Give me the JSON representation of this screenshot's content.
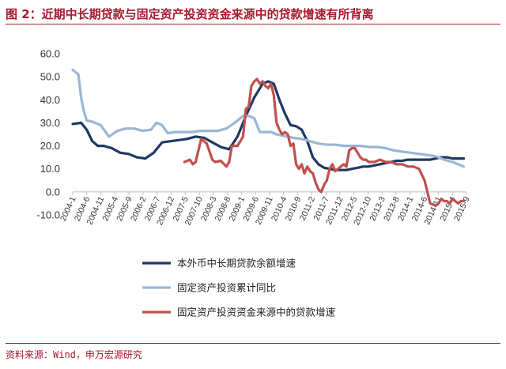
{
  "header": {
    "title": "图 2：近期中长期贷款与固定资产投资资金来源中的贷款增速有所背离"
  },
  "footer": {
    "source": "资料来源：Wind，申万宏源研究"
  },
  "chart_data": {
    "type": "line",
    "title": "",
    "xlabel": "",
    "ylabel": "",
    "ylim": [
      -10,
      60
    ],
    "yticks": [
      "60.0",
      "50.0",
      "40.0",
      "30.0",
      "20.0",
      "10.0",
      "0.0",
      "-10.0"
    ],
    "xticks": [
      "2004-1",
      "2004-6",
      "2004-11",
      "2005-4",
      "2005-9",
      "2006-2",
      "2006-7",
      "2006-12",
      "2007-5",
      "2007-10",
      "2008-3",
      "2008-8",
      "2009-1",
      "2009-6",
      "2009-11",
      "2010-4",
      "2010-9",
      "2011-2",
      "2011-7",
      "2011-12",
      "2012-5",
      "2012-10",
      "2013-3",
      "2013-8",
      "2014-1",
      "2014-6",
      "2014-11",
      "2015-4",
      "2015-9"
    ],
    "x_range": [
      0,
      141
    ],
    "legend_position": "bottom",
    "grid": false,
    "series": [
      {
        "name": "本外币中长期贷款余额增速",
        "color": "#1f3864",
        "x": [
          0,
          3,
          5,
          7,
          9,
          11,
          14,
          17,
          20,
          23,
          26,
          29,
          32,
          35,
          38,
          41,
          44,
          47,
          50,
          53,
          56,
          59,
          62,
          65,
          68,
          70,
          72,
          74,
          76,
          78,
          80,
          82,
          84,
          86,
          88,
          90,
          92,
          94,
          96,
          98,
          100,
          102,
          104,
          106,
          108,
          110,
          112,
          114,
          116,
          118,
          120,
          122,
          124,
          126,
          128,
          130,
          132,
          134,
          136,
          138,
          140
        ],
        "y": [
          29.5,
          30,
          27,
          22,
          20,
          20,
          19,
          17,
          16.5,
          15,
          14.5,
          17,
          21.5,
          22,
          22.5,
          23,
          24,
          23.5,
          21.5,
          19.5,
          18.5,
          24,
          33,
          41,
          47,
          48,
          47,
          40,
          34,
          29,
          28.5,
          27,
          22,
          15,
          12,
          10.5,
          10,
          9.5,
          9.5,
          9.5,
          10,
          10.5,
          11,
          11,
          11.5,
          12,
          12.5,
          13,
          13.5,
          13.5,
          14,
          14,
          14,
          14,
          14,
          14.5,
          15,
          15,
          14.5,
          14.5,
          14.5
        ]
      },
      {
        "name": "固定资产投资累计同比",
        "color": "#9bb6d5",
        "x": [
          0,
          2,
          3,
          4,
          5,
          7,
          10,
          13,
          16,
          19,
          22,
          25,
          28,
          30,
          32,
          34,
          37,
          40,
          43,
          46,
          49,
          52,
          55,
          58,
          61,
          63,
          65,
          67,
          69,
          71,
          73,
          75,
          77,
          79,
          82,
          85,
          88,
          91,
          94,
          97,
          100,
          103,
          106,
          109,
          112,
          115,
          118,
          121,
          124,
          127,
          130,
          133,
          136,
          138,
          140
        ],
        "y": [
          53,
          51,
          41,
          35,
          31,
          30.5,
          29,
          24,
          26.5,
          27.5,
          27.5,
          26.5,
          27,
          30,
          29,
          25.5,
          26,
          26,
          26,
          26.5,
          26.5,
          26.5,
          27.5,
          30,
          33,
          33,
          32,
          26,
          26,
          26,
          25,
          24.5,
          24,
          23.5,
          23,
          22,
          21,
          20.5,
          20.5,
          20,
          20,
          20,
          19.5,
          19.5,
          19,
          18,
          17.5,
          17,
          16.5,
          16,
          15.5,
          14,
          13,
          12,
          11
        ]
      },
      {
        "name": "固定资产投资资金来源中的贷款增速",
        "color": "#c0504d",
        "x": [
          40,
          42,
          43,
          44,
          46,
          48,
          50,
          51,
          53,
          55,
          56,
          57,
          59,
          61,
          62,
          63,
          64,
          65,
          66,
          67,
          68,
          69,
          70,
          71,
          72,
          73,
          74,
          75,
          76,
          77,
          78,
          79,
          80,
          81,
          82,
          83,
          84,
          85,
          86,
          87,
          88,
          89,
          90,
          91,
          92,
          93,
          94,
          95,
          96,
          97,
          98,
          99,
          100,
          101,
          102,
          103,
          104,
          105,
          106,
          108,
          110,
          112,
          114,
          116,
          118,
          120,
          122,
          124,
          126,
          128,
          130,
          131,
          132,
          133,
          134,
          135,
          136,
          137,
          138,
          139,
          140
        ],
        "y": [
          13,
          14,
          12,
          13,
          23,
          21,
          14,
          13,
          13.5,
          11,
          13,
          20,
          20,
          24,
          36,
          37,
          46,
          48,
          49,
          47,
          48,
          46,
          45,
          47,
          42,
          30,
          27,
          25,
          26,
          25,
          20,
          21,
          12,
          10,
          12,
          8,
          11,
          9,
          8,
          4,
          1,
          0,
          3,
          5,
          10,
          12,
          9,
          10,
          11,
          12,
          11,
          18,
          19,
          19,
          17,
          15,
          14,
          14,
          13,
          13,
          14,
          13,
          13,
          12,
          12,
          11,
          11,
          10,
          5,
          -5,
          -6,
          -5,
          -3,
          -4,
          -4,
          -5,
          -3,
          -4,
          -5,
          -4,
          -4
        ]
      }
    ]
  }
}
